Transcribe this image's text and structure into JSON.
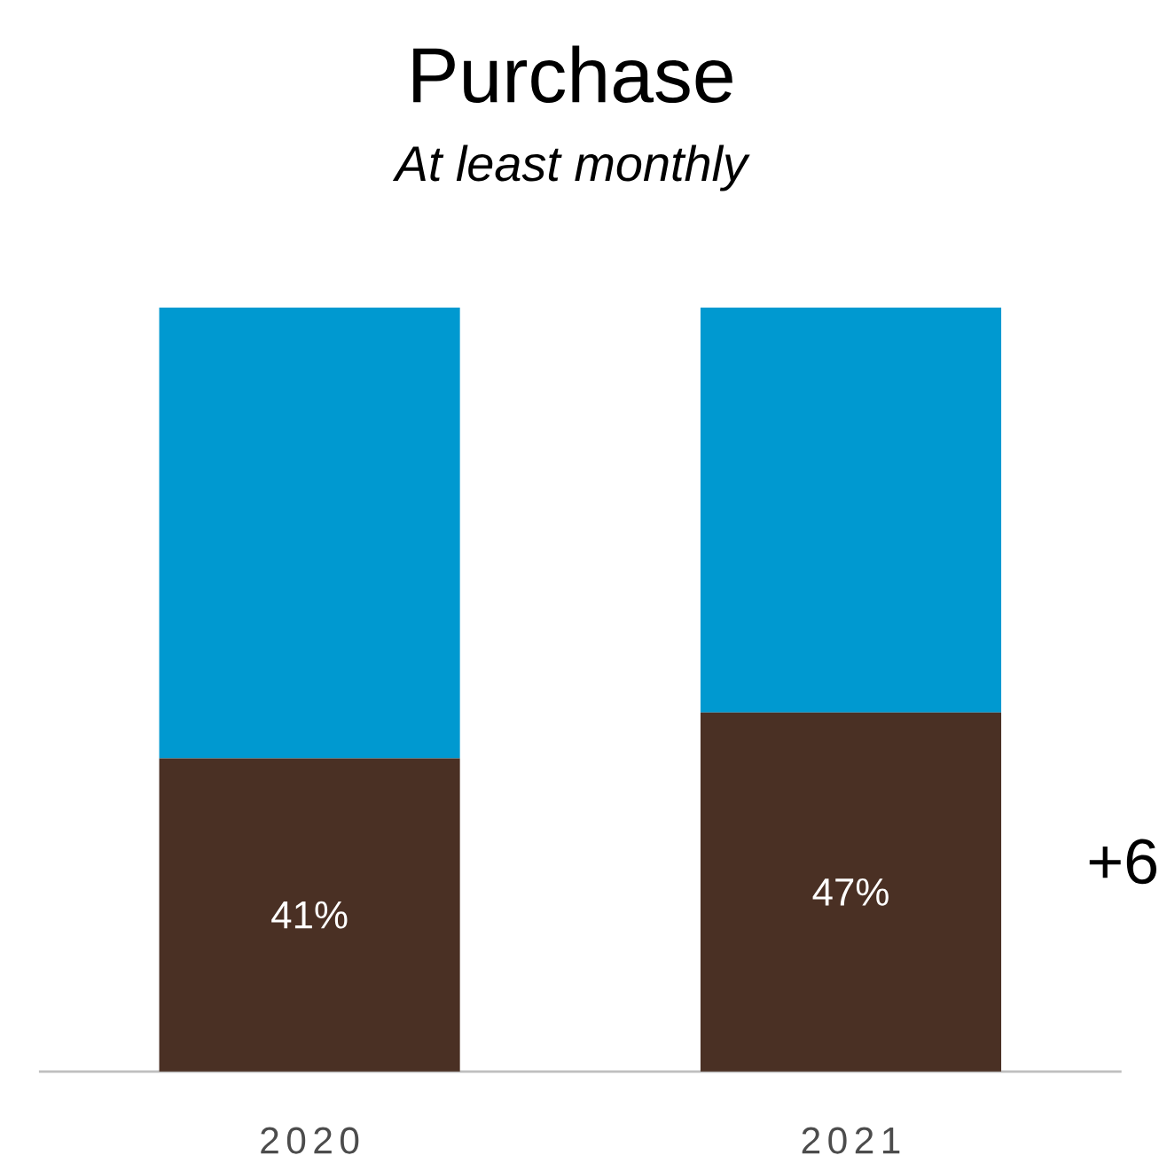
{
  "chart_data": {
    "type": "bar",
    "title": "Purchase",
    "subtitle": "At least monthly",
    "stacked": true,
    "categories": [
      "2020",
      "2021"
    ],
    "tick_labels": "x",
    "series": [
      {
        "color": "#4a3024",
        "values": [
          41,
          47
        ],
        "value_labels": [
          "41%",
          "47%"
        ]
      },
      {
        "color": "#0099d0",
        "values": [
          59,
          53
        ]
      }
    ],
    "annotations": [
      "+6"
    ]
  }
}
